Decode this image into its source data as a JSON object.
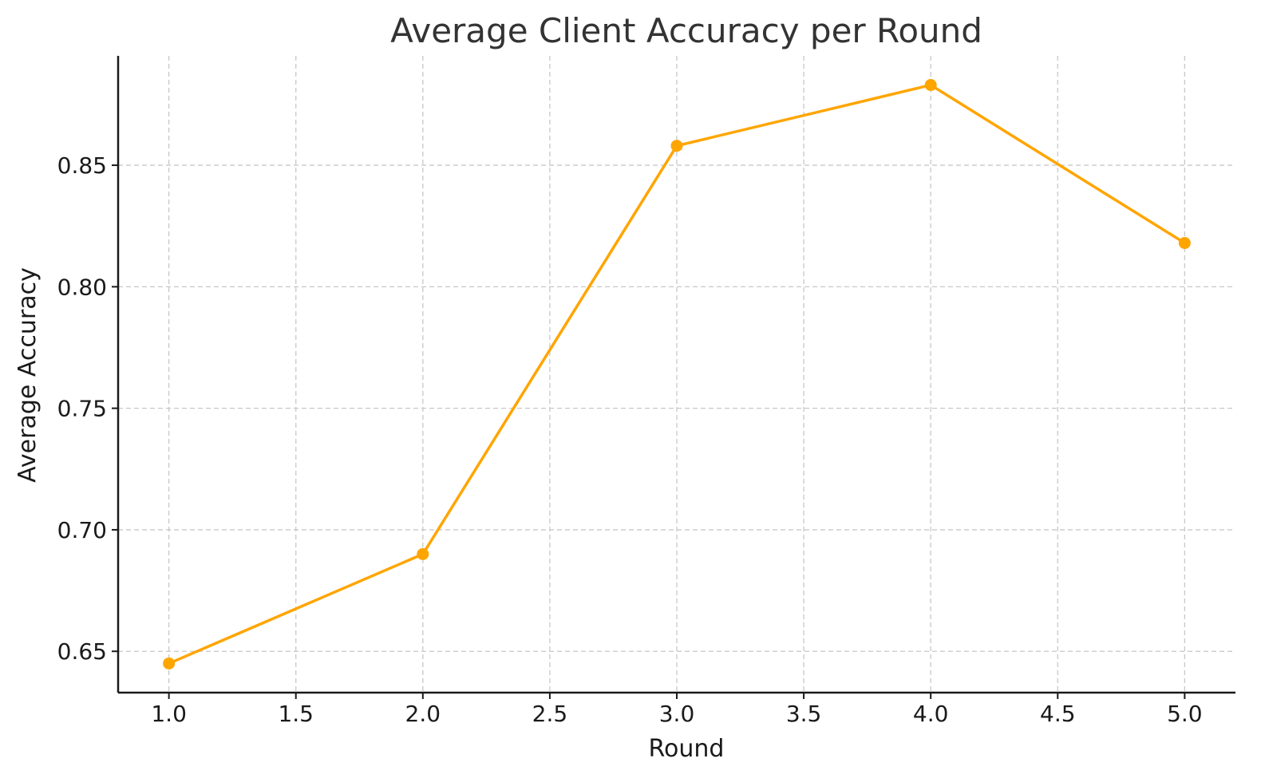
{
  "chart_data": {
    "type": "line",
    "title": "Average Client Accuracy per Round",
    "xlabel": "Round",
    "ylabel": "Average Accuracy",
    "x": [
      1.0,
      2.0,
      3.0,
      4.0,
      5.0
    ],
    "series": [
      {
        "values": [
          0.645,
          0.69,
          0.858,
          0.883,
          0.818
        ]
      }
    ],
    "xlim": [
      0.8,
      5.2
    ],
    "ylim": [
      0.633,
      0.895
    ],
    "xticks": [
      1.0,
      1.5,
      2.0,
      2.5,
      3.0,
      3.5,
      4.0,
      4.5,
      5.0
    ],
    "xtick_labels": [
      "1.0",
      "1.5",
      "2.0",
      "2.5",
      "3.0",
      "3.5",
      "4.0",
      "4.5",
      "5.0"
    ],
    "yticks": [
      0.65,
      0.7,
      0.75,
      0.8,
      0.85
    ],
    "ytick_labels": [
      "0.65",
      "0.70",
      "0.75",
      "0.80",
      "0.85"
    ],
    "grid": true,
    "line_color": "#FFA500",
    "marker": "circle"
  }
}
